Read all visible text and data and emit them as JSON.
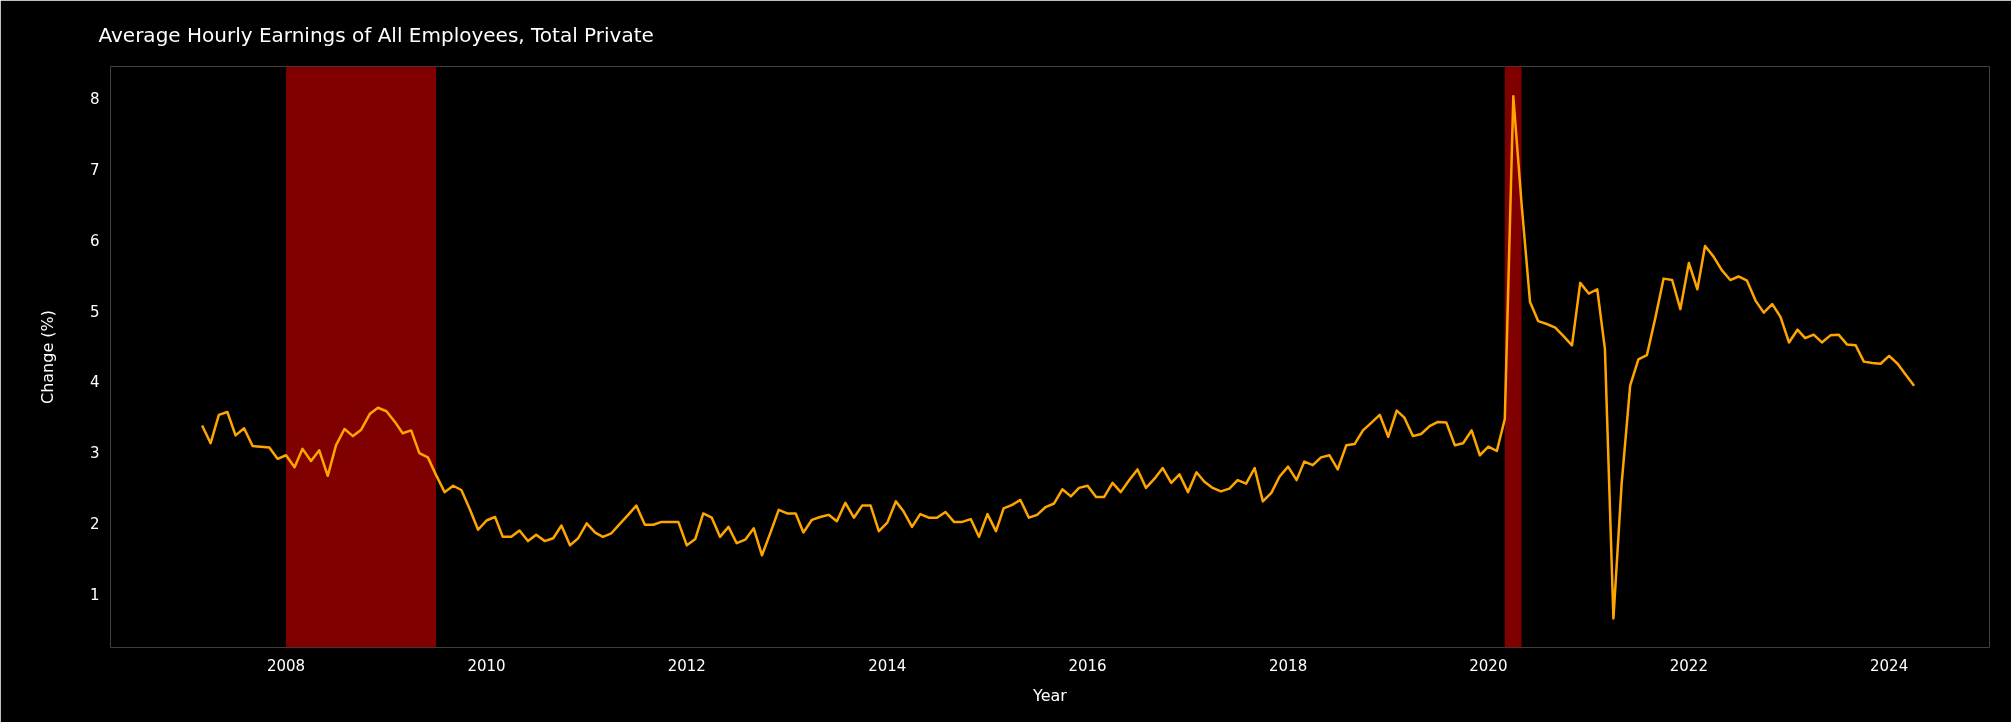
{
  "chart_data": {
    "type": "line",
    "title": "Average Hourly Earnings of All Employees, Total Private",
    "xlabel": "Year",
    "ylabel": "Change (%)",
    "x": [
      "2007-03",
      "2007-04",
      "2007-05",
      "2007-06",
      "2007-07",
      "2007-08",
      "2007-09",
      "2007-10",
      "2007-11",
      "2007-12",
      "2008-01",
      "2008-02",
      "2008-03",
      "2008-04",
      "2008-05",
      "2008-06",
      "2008-07",
      "2008-08",
      "2008-09",
      "2008-10",
      "2008-11",
      "2008-12",
      "2009-01",
      "2009-02",
      "2009-03",
      "2009-04",
      "2009-05",
      "2009-06",
      "2009-07",
      "2009-08",
      "2009-09",
      "2009-10",
      "2009-11",
      "2009-12",
      "2010-01",
      "2010-02",
      "2010-03",
      "2010-04",
      "2010-05",
      "2010-06",
      "2010-07",
      "2010-08",
      "2010-09",
      "2010-10",
      "2010-11",
      "2010-12",
      "2011-01",
      "2011-02",
      "2011-03",
      "2011-04",
      "2011-05",
      "2011-06",
      "2011-07",
      "2011-08",
      "2011-09",
      "2011-10",
      "2011-11",
      "2011-12",
      "2012-01",
      "2012-02",
      "2012-03",
      "2012-04",
      "2012-05",
      "2012-06",
      "2012-07",
      "2012-08",
      "2012-09",
      "2012-10",
      "2012-11",
      "2012-12",
      "2013-01",
      "2013-02",
      "2013-03",
      "2013-04",
      "2013-05",
      "2013-06",
      "2013-07",
      "2013-08",
      "2013-09",
      "2013-10",
      "2013-11",
      "2013-12",
      "2014-01",
      "2014-02",
      "2014-03",
      "2014-04",
      "2014-05",
      "2014-06",
      "2014-07",
      "2014-08",
      "2014-09",
      "2014-10",
      "2014-11",
      "2014-12",
      "2015-01",
      "2015-02",
      "2015-03",
      "2015-04",
      "2015-05",
      "2015-06",
      "2015-07",
      "2015-08",
      "2015-09",
      "2015-10",
      "2015-11",
      "2015-12",
      "2016-01",
      "2016-02",
      "2016-03",
      "2016-04",
      "2016-05",
      "2016-06",
      "2016-07",
      "2016-08",
      "2016-09",
      "2016-10",
      "2016-11",
      "2016-12",
      "2017-01",
      "2017-02",
      "2017-03",
      "2017-04",
      "2017-05",
      "2017-06",
      "2017-07",
      "2017-08",
      "2017-09",
      "2017-10",
      "2017-11",
      "2017-12",
      "2018-01",
      "2018-02",
      "2018-03",
      "2018-04",
      "2018-05",
      "2018-06",
      "2018-07",
      "2018-08",
      "2018-09",
      "2018-10",
      "2018-11",
      "2018-12",
      "2019-01",
      "2019-02",
      "2019-03",
      "2019-04",
      "2019-05",
      "2019-06",
      "2019-07",
      "2019-08",
      "2019-09",
      "2019-10",
      "2019-11",
      "2019-12",
      "2020-01",
      "2020-02",
      "2020-03",
      "2020-04",
      "2020-05",
      "2020-06",
      "2020-07",
      "2020-08",
      "2020-09",
      "2020-10",
      "2020-11",
      "2020-12",
      "2021-01",
      "2021-02",
      "2021-03",
      "2021-04",
      "2021-05",
      "2021-06",
      "2021-07",
      "2021-08",
      "2021-09",
      "2021-10",
      "2021-11",
      "2021-12",
      "2022-01",
      "2022-02",
      "2022-03",
      "2022-04",
      "2022-05",
      "2022-06",
      "2022-07",
      "2022-08",
      "2022-09",
      "2022-10",
      "2022-11",
      "2022-12",
      "2023-01",
      "2023-02",
      "2023-03",
      "2023-04",
      "2023-05",
      "2023-06",
      "2023-07",
      "2023-08",
      "2023-09",
      "2023-10",
      "2023-11",
      "2023-12",
      "2024-01",
      "2024-02",
      "2024-03",
      "2024-04"
    ],
    "series": [
      {
        "color": "#ffa500",
        "values": [
          3.38,
          3.13,
          3.53,
          3.57,
          3.24,
          3.34,
          3.09,
          3.08,
          3.07,
          2.91,
          2.96,
          2.79,
          3.05,
          2.88,
          3.03,
          2.67,
          3.1,
          3.33,
          3.23,
          3.32,
          3.54,
          3.63,
          3.58,
          3.43,
          3.27,
          3.31,
          2.99,
          2.93,
          2.68,
          2.44,
          2.53,
          2.47,
          2.2,
          1.91,
          2.04,
          2.09,
          1.81,
          1.81,
          1.9,
          1.75,
          1.84,
          1.75,
          1.79,
          1.97,
          1.69,
          1.79,
          2.0,
          1.87,
          1.81,
          1.86,
          1.99,
          2.12,
          2.25,
          1.98,
          1.98,
          2.02,
          2.02,
          2.02,
          1.69,
          1.78,
          2.14,
          2.08,
          1.81,
          1.95,
          1.72,
          1.77,
          1.93,
          1.55,
          1.87,
          2.19,
          2.14,
          2.14,
          1.87,
          2.05,
          2.09,
          2.12,
          2.03,
          2.29,
          2.08,
          2.25,
          2.25,
          1.89,
          2.01,
          2.31,
          2.17,
          1.95,
          2.13,
          2.08,
          2.08,
          2.16,
          2.02,
          2.02,
          2.06,
          1.81,
          2.13,
          1.89,
          2.21,
          2.26,
          2.33,
          2.08,
          2.12,
          2.23,
          2.28,
          2.48,
          2.38,
          2.5,
          2.53,
          2.37,
          2.37,
          2.57,
          2.44,
          2.61,
          2.76,
          2.5,
          2.63,
          2.78,
          2.57,
          2.69,
          2.44,
          2.72,
          2.59,
          2.5,
          2.45,
          2.49,
          2.61,
          2.56,
          2.78,
          2.31,
          2.43,
          2.66,
          2.8,
          2.61,
          2.87,
          2.82,
          2.93,
          2.96,
          2.76,
          3.1,
          3.12,
          3.31,
          3.42,
          3.53,
          3.22,
          3.59,
          3.49,
          3.23,
          3.26,
          3.37,
          3.43,
          3.42,
          3.1,
          3.13,
          3.31,
          2.96,
          3.08,
          3.02,
          3.47,
          8.02,
          6.51,
          5.12,
          4.85,
          4.81,
          4.76,
          4.64,
          4.51,
          5.39,
          5.24,
          5.3,
          4.46,
          0.66,
          2.56,
          3.94,
          4.31,
          4.37,
          4.9,
          5.45,
          5.43,
          5.02,
          5.67,
          5.3,
          5.91,
          5.76,
          5.57,
          5.43,
          5.48,
          5.42,
          5.14,
          4.97,
          5.09,
          4.91,
          4.55,
          4.73,
          4.61,
          4.66,
          4.55,
          4.65,
          4.66,
          4.52,
          4.51,
          4.28,
          4.26,
          4.25,
          4.36,
          4.25,
          4.1,
          3.94
        ]
      }
    ],
    "xlim": [
      "2006-04",
      "2025-01"
    ],
    "ylim": [
      0.25,
      8.44
    ],
    "xticks": [
      {
        "value": "2008-01",
        "label": "2008"
      },
      {
        "value": "2010-01",
        "label": "2010"
      },
      {
        "value": "2012-01",
        "label": "2012"
      },
      {
        "value": "2014-01",
        "label": "2014"
      },
      {
        "value": "2016-01",
        "label": "2016"
      },
      {
        "value": "2018-01",
        "label": "2018"
      },
      {
        "value": "2020-01",
        "label": "2020"
      },
      {
        "value": "2022-01",
        "label": "2022"
      },
      {
        "value": "2024-01",
        "label": "2024"
      }
    ],
    "yticks": [
      1,
      2,
      3,
      4,
      5,
      6,
      7,
      8
    ],
    "bands": [
      {
        "axis": "x",
        "from": "2008-01",
        "to": "2009-07",
        "color": "#800000"
      },
      {
        "axis": "x",
        "from": "2020-03",
        "to": "2020-05",
        "color": "#800000"
      }
    ],
    "line_style": "solid"
  }
}
